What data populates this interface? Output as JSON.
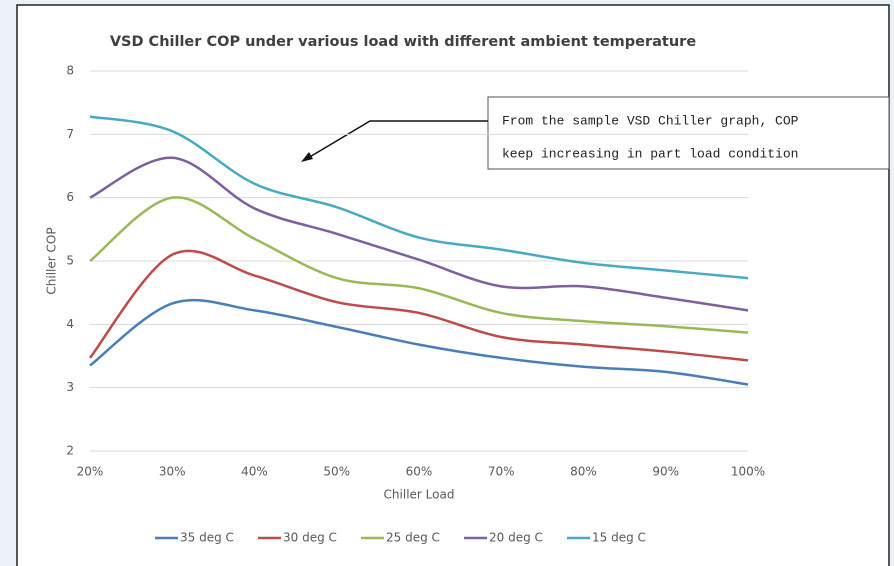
{
  "chart_data": {
    "type": "line",
    "title": "VSD Chiller COP under various load with different ambient temperature",
    "x_label": "Chiller Load",
    "y_label": "Chiller COP",
    "categories": [
      "20%",
      "30%",
      "40%",
      "50%",
      "60%",
      "70%",
      "80%",
      "90%",
      "100%"
    ],
    "series": [
      {
        "name": "35 deg C",
        "color": "#4a7ebb",
        "values": [
          3.35,
          4.33,
          4.22,
          3.96,
          3.68,
          3.47,
          3.33,
          3.25,
          3.05
        ]
      },
      {
        "name": "30 deg C",
        "color": "#be4b48",
        "values": [
          3.47,
          5.1,
          4.77,
          4.35,
          4.18,
          3.8,
          3.68,
          3.57,
          3.43
        ]
      },
      {
        "name": "25 deg C",
        "color": "#98b954",
        "values": [
          5.0,
          6.0,
          5.35,
          4.73,
          4.57,
          4.18,
          4.05,
          3.97,
          3.87
        ]
      },
      {
        "name": "20 deg C",
        "color": "#7d60a0",
        "values": [
          6.0,
          6.63,
          5.83,
          5.43,
          5.02,
          4.6,
          4.6,
          4.42,
          4.22
        ]
      },
      {
        "name": "15 deg C",
        "color": "#46aac5",
        "values": [
          7.28,
          7.05,
          6.22,
          5.85,
          5.37,
          5.18,
          4.97,
          4.85,
          4.73
        ]
      }
    ],
    "ylim": [
      2,
      8
    ],
    "yticks": [
      2,
      3,
      4,
      5,
      6,
      7,
      8
    ],
    "grid": true,
    "smooth": true,
    "legend": "bottom",
    "annotation": [
      "From the sample VSD Chiller graph, COP",
      "keep increasing in part load condition"
    ]
  }
}
